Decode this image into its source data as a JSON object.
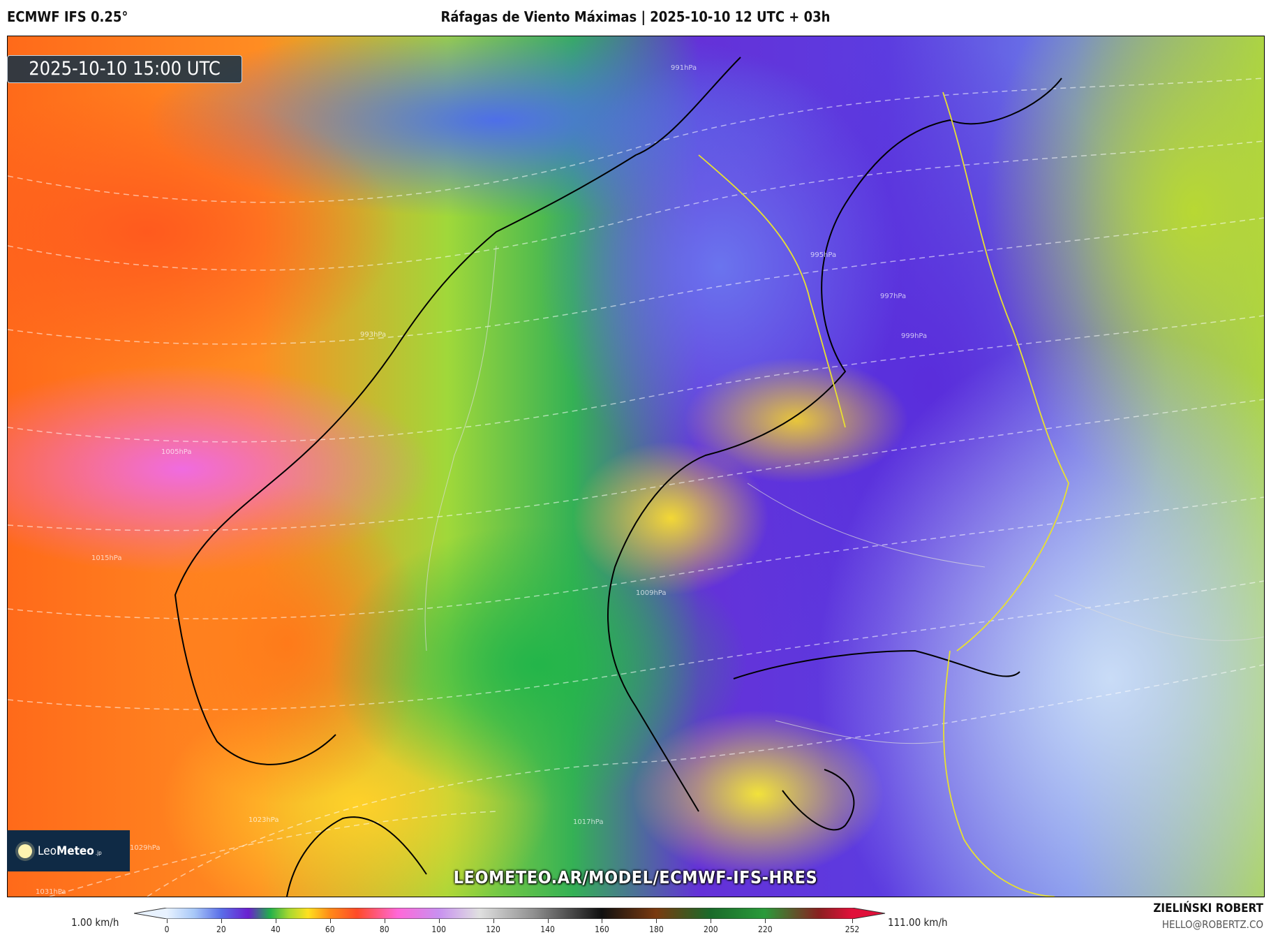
{
  "header": {
    "model": "ECMWF IFS 0.25°",
    "title": "Ráfagas de Viento Máximas | 2025-10-10 12 UTC + 03h"
  },
  "map": {
    "valid_time": "2025-10-10 15:00 UTC",
    "isobar_labels": [
      "991hPa",
      "995hPa",
      "997hPa",
      "999hPa",
      "993hPa",
      "1005hPa",
      "1009hPa",
      "1015hPa",
      "1017hPa",
      "1023hPa",
      "1029hPa",
      "1031hPa"
    ],
    "logo_text": "LeoMeteo.jp",
    "watermark_url": "LEOMETEO.AR/MODEL/ECMWF-IFS-HRES"
  },
  "colorbar": {
    "min_label": "1.00 km/h",
    "max_label": "111.00 km/h",
    "range": [
      0,
      252
    ],
    "ticks": [
      "0",
      "20",
      "40",
      "60",
      "80",
      "100",
      "120",
      "140",
      "160",
      "180",
      "200",
      "220",
      "252"
    ],
    "colors": [
      {
        "v": 0,
        "c": "#e8f2ff"
      },
      {
        "v": 10,
        "c": "#a8c8f8"
      },
      {
        "v": 20,
        "c": "#5a6ee8"
      },
      {
        "v": 30,
        "c": "#6a1fd0"
      },
      {
        "v": 38,
        "c": "#22b04a"
      },
      {
        "v": 45,
        "c": "#a8d830"
      },
      {
        "v": 52,
        "c": "#ffe020"
      },
      {
        "v": 60,
        "c": "#ff8a18"
      },
      {
        "v": 70,
        "c": "#ff4a28"
      },
      {
        "v": 85,
        "c": "#ff68d8"
      },
      {
        "v": 100,
        "c": "#c890f0"
      },
      {
        "v": 115,
        "c": "#e0e0e0"
      },
      {
        "v": 135,
        "c": "#909090"
      },
      {
        "v": 160,
        "c": "#101010"
      },
      {
        "v": 180,
        "c": "#7a3a10"
      },
      {
        "v": 200,
        "c": "#1a6a2a"
      },
      {
        "v": 220,
        "c": "#2a9a3a"
      },
      {
        "v": 240,
        "c": "#8a2020"
      },
      {
        "v": 252,
        "c": "#e0103a"
      }
    ]
  },
  "footer": {
    "author": "ZIELIŃSKI ROBERT",
    "email": "HELLO@ROBERTZ.CO"
  }
}
